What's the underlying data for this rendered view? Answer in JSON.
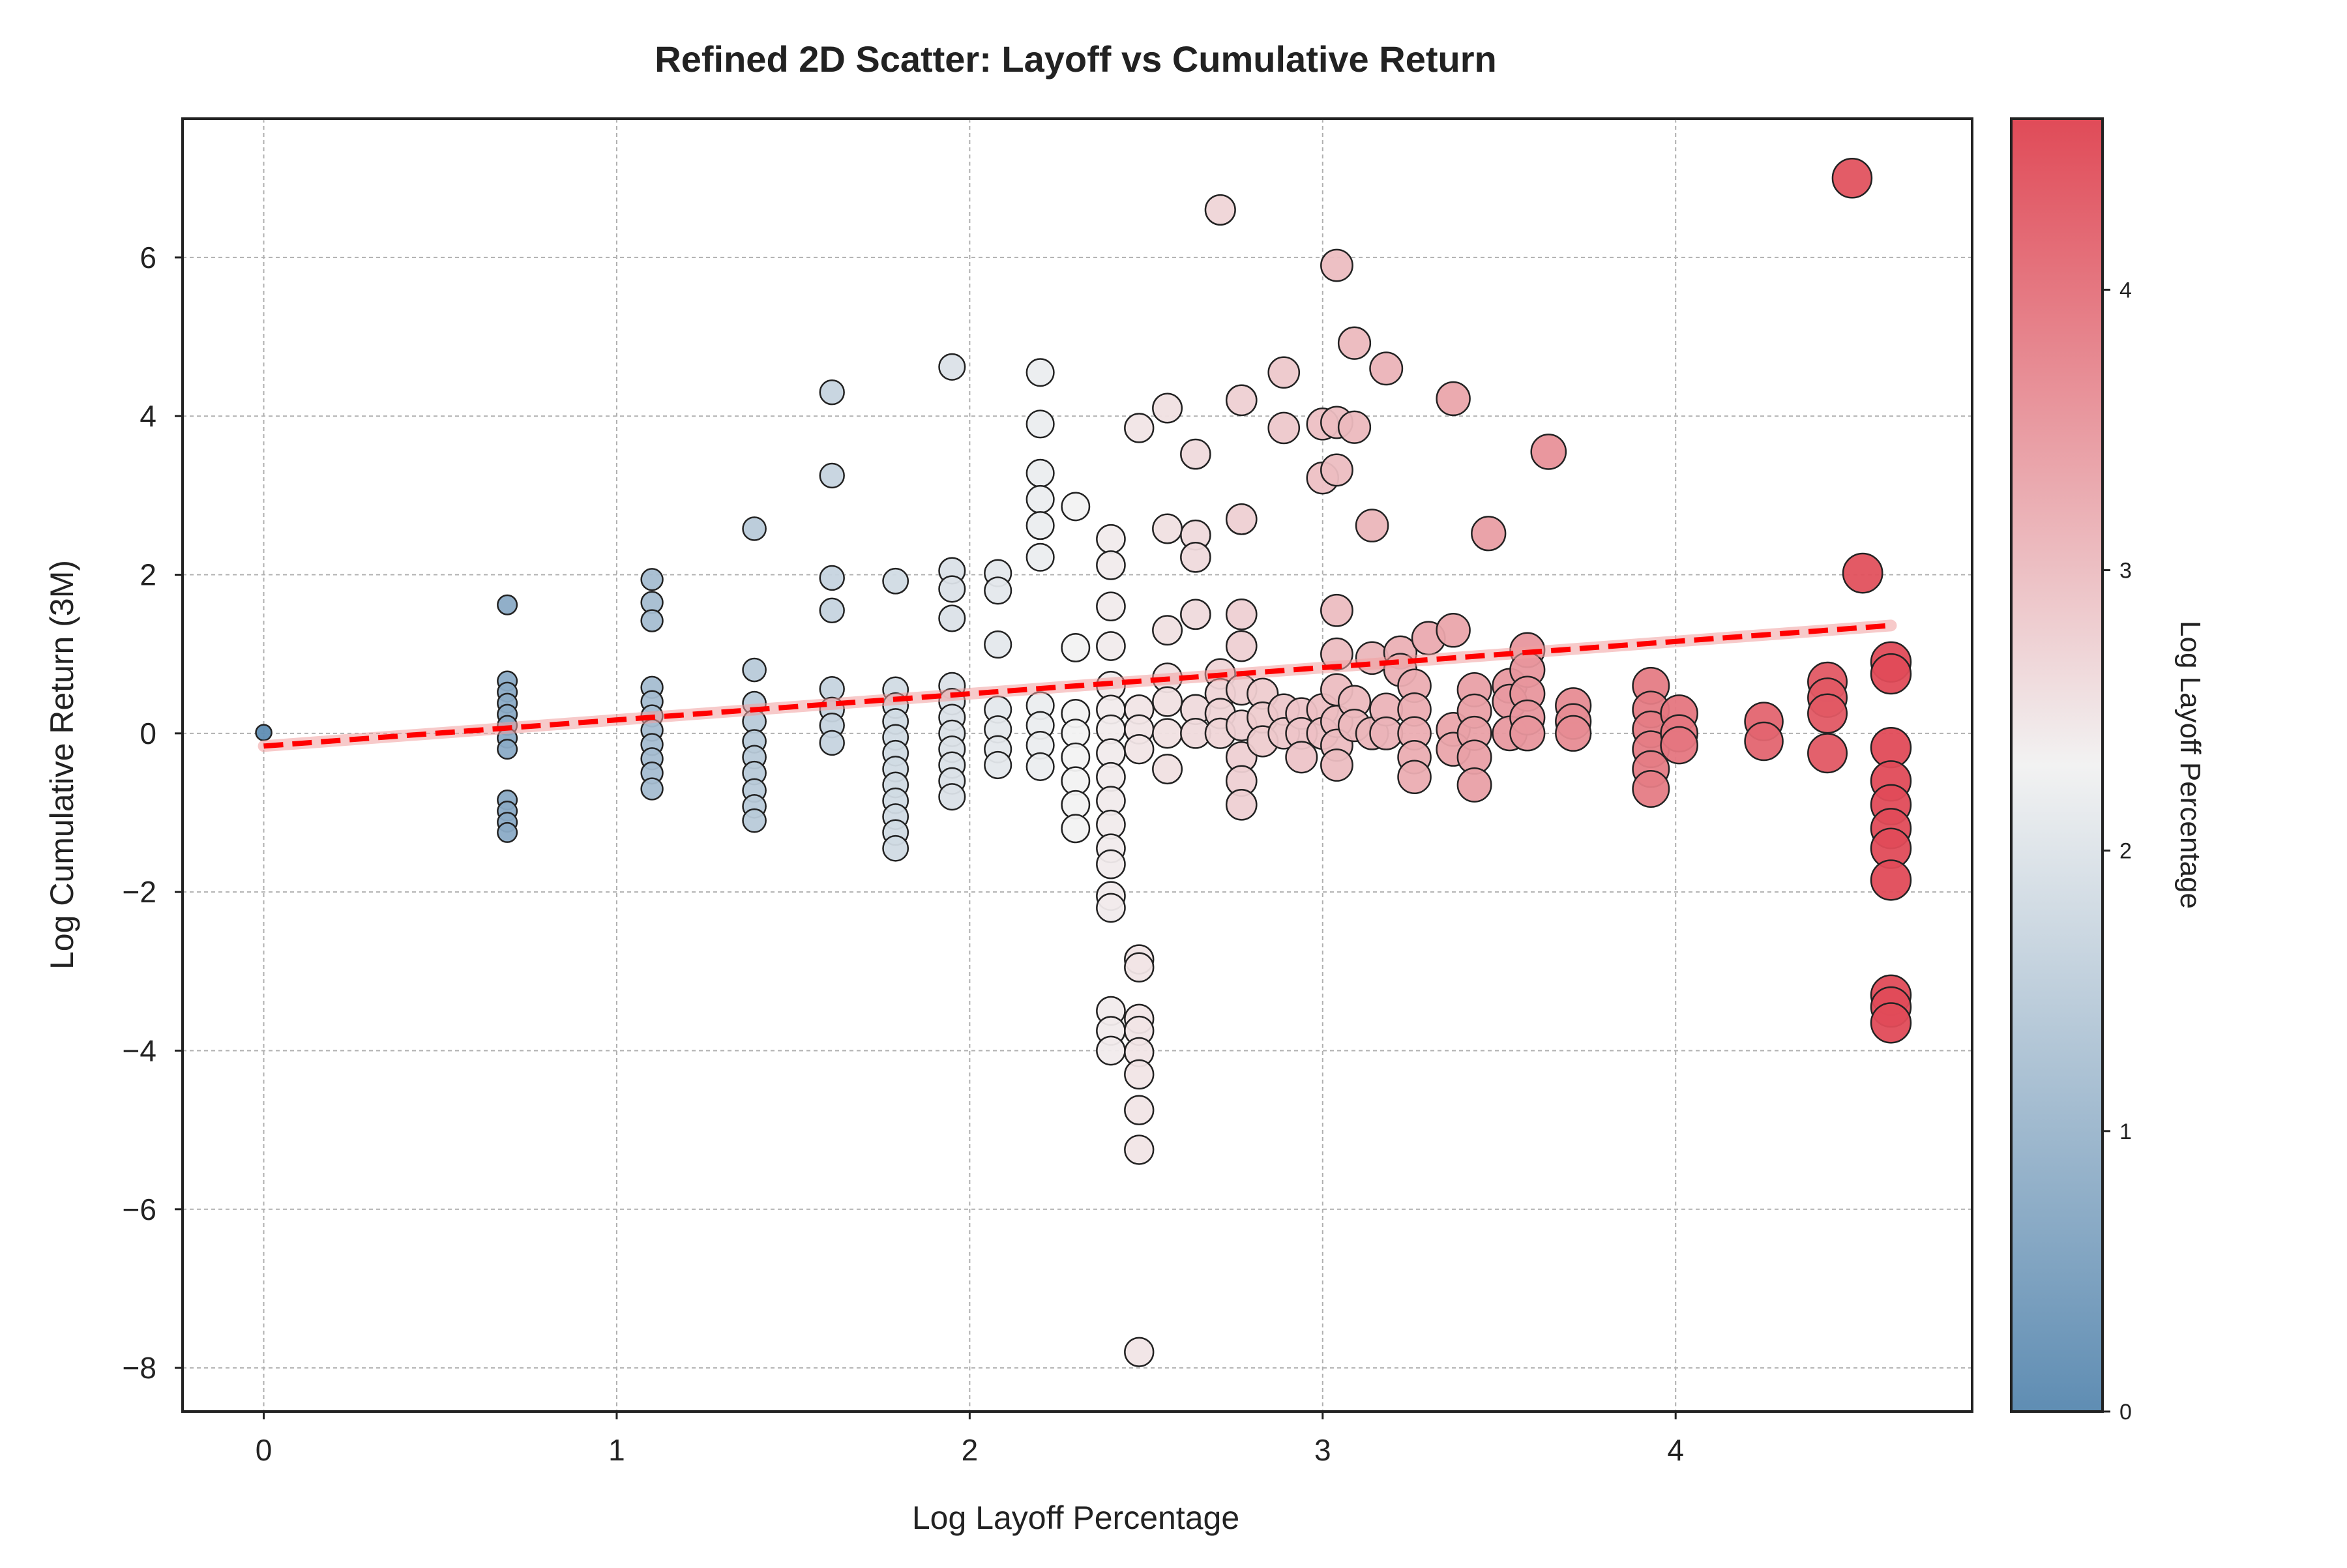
{
  "chart_data": {
    "type": "scatter",
    "title": "Refined 2D Scatter: Layoff vs Cumulative Return",
    "xlabel": "Log Layoff Percentage",
    "ylabel": "Log Cumulative Return (3M)",
    "xlim": [
      -0.23,
      4.84
    ],
    "ylim": [
      -8.55,
      7.75
    ],
    "xticks": [
      0,
      1,
      2,
      3,
      4
    ],
    "xtick_labels": [
      "0",
      "1",
      "2",
      "3",
      "4"
    ],
    "yticks": [
      -8,
      -6,
      -4,
      -2,
      0,
      2,
      4,
      6
    ],
    "ytick_labels": [
      "−8",
      "−6",
      "−4",
      "−2",
      "0",
      "2",
      "4",
      "6"
    ],
    "grid": true,
    "trendline": {
      "style": "dashed",
      "color": "#ff0000",
      "x": [
        0,
        4.61
      ],
      "y": [
        -0.16,
        1.36
      ]
    },
    "colorbar": {
      "label": "Log Layoff Percentage",
      "range": [
        0,
        4.61
      ],
      "ticks": [
        0,
        1,
        2,
        3,
        4
      ],
      "tick_labels": [
        "0",
        "1",
        "2",
        "3",
        "4"
      ],
      "colors": [
        "#5f8db3",
        "#f2f2f2",
        "#e04b58"
      ]
    },
    "points": [
      {
        "x": 0,
        "y": 0.01
      },
      {
        "x": 0.69,
        "y": 1.62
      },
      {
        "x": 0.69,
        "y": 0.66
      },
      {
        "x": 0.69,
        "y": 0.52
      },
      {
        "x": 0.69,
        "y": 0.38
      },
      {
        "x": 0.69,
        "y": 0.24
      },
      {
        "x": 0.69,
        "y": 0.1
      },
      {
        "x": 0.69,
        "y": -0.06
      },
      {
        "x": 0.69,
        "y": -0.2
      },
      {
        "x": 0.69,
        "y": -0.84
      },
      {
        "x": 0.69,
        "y": -0.98
      },
      {
        "x": 0.69,
        "y": -1.12
      },
      {
        "x": 0.69,
        "y": -1.25
      },
      {
        "x": 1.1,
        "y": 1.94
      },
      {
        "x": 1.1,
        "y": 1.65
      },
      {
        "x": 1.1,
        "y": 1.42
      },
      {
        "x": 1.1,
        "y": 0.58
      },
      {
        "x": 1.1,
        "y": 0.4
      },
      {
        "x": 1.1,
        "y": 0.22
      },
      {
        "x": 1.1,
        "y": 0.04
      },
      {
        "x": 1.1,
        "y": -0.14
      },
      {
        "x": 1.1,
        "y": -0.32
      },
      {
        "x": 1.1,
        "y": -0.5
      },
      {
        "x": 1.1,
        "y": -0.7
      },
      {
        "x": 1.39,
        "y": 2.58
      },
      {
        "x": 1.39,
        "y": 0.8
      },
      {
        "x": 1.39,
        "y": 0.38
      },
      {
        "x": 1.39,
        "y": 0.15
      },
      {
        "x": 1.39,
        "y": -0.1
      },
      {
        "x": 1.39,
        "y": -0.3
      },
      {
        "x": 1.39,
        "y": -0.5
      },
      {
        "x": 1.39,
        "y": -0.72
      },
      {
        "x": 1.39,
        "y": -0.92
      },
      {
        "x": 1.39,
        "y": -1.1
      },
      {
        "x": 1.61,
        "y": 4.3
      },
      {
        "x": 1.61,
        "y": 3.25
      },
      {
        "x": 1.61,
        "y": 1.96
      },
      {
        "x": 1.61,
        "y": 1.55
      },
      {
        "x": 1.61,
        "y": 0.56
      },
      {
        "x": 1.61,
        "y": 0.3
      },
      {
        "x": 1.61,
        "y": 0.1
      },
      {
        "x": 1.61,
        "y": -0.12
      },
      {
        "x": 1.79,
        "y": 1.92
      },
      {
        "x": 1.79,
        "y": 0.55
      },
      {
        "x": 1.79,
        "y": 0.35
      },
      {
        "x": 1.79,
        "y": 0.15
      },
      {
        "x": 1.79,
        "y": -0.05
      },
      {
        "x": 1.79,
        "y": -0.25
      },
      {
        "x": 1.79,
        "y": -0.45
      },
      {
        "x": 1.79,
        "y": -0.65
      },
      {
        "x": 1.79,
        "y": -0.85
      },
      {
        "x": 1.79,
        "y": -1.05
      },
      {
        "x": 1.79,
        "y": -1.25
      },
      {
        "x": 1.79,
        "y": -1.45
      },
      {
        "x": 1.95,
        "y": 4.62
      },
      {
        "x": 1.95,
        "y": 2.05
      },
      {
        "x": 1.95,
        "y": 1.82
      },
      {
        "x": 1.95,
        "y": 1.45
      },
      {
        "x": 1.95,
        "y": 0.6
      },
      {
        "x": 1.95,
        "y": 0.4
      },
      {
        "x": 1.95,
        "y": 0.2
      },
      {
        "x": 1.95,
        "y": 0
      },
      {
        "x": 1.95,
        "y": -0.2
      },
      {
        "x": 1.95,
        "y": -0.4
      },
      {
        "x": 1.95,
        "y": -0.6
      },
      {
        "x": 1.95,
        "y": -0.8
      },
      {
        "x": 2.08,
        "y": 2.02
      },
      {
        "x": 2.08,
        "y": 1.8
      },
      {
        "x": 2.08,
        "y": 1.12
      },
      {
        "x": 2.08,
        "y": 0.3
      },
      {
        "x": 2.08,
        "y": 0.05
      },
      {
        "x": 2.08,
        "y": -0.2
      },
      {
        "x": 2.08,
        "y": -0.4
      },
      {
        "x": 2.2,
        "y": 4.55
      },
      {
        "x": 2.2,
        "y": 3.9
      },
      {
        "x": 2.2,
        "y": 3.28
      },
      {
        "x": 2.2,
        "y": 2.95
      },
      {
        "x": 2.2,
        "y": 2.62
      },
      {
        "x": 2.2,
        "y": 2.22
      },
      {
        "x": 2.2,
        "y": 0.35
      },
      {
        "x": 2.2,
        "y": 0.1
      },
      {
        "x": 2.2,
        "y": -0.15
      },
      {
        "x": 2.2,
        "y": -0.42
      },
      {
        "x": 2.3,
        "y": 2.86
      },
      {
        "x": 2.3,
        "y": 1.08
      },
      {
        "x": 2.3,
        "y": 0.25
      },
      {
        "x": 2.3,
        "y": 0
      },
      {
        "x": 2.3,
        "y": -0.3
      },
      {
        "x": 2.3,
        "y": -0.6
      },
      {
        "x": 2.3,
        "y": -0.9
      },
      {
        "x": 2.3,
        "y": -1.2
      },
      {
        "x": 2.4,
        "y": 2.45
      },
      {
        "x": 2.4,
        "y": 2.12
      },
      {
        "x": 2.4,
        "y": 1.6
      },
      {
        "x": 2.4,
        "y": 1.1
      },
      {
        "x": 2.4,
        "y": 0.6
      },
      {
        "x": 2.4,
        "y": 0.3
      },
      {
        "x": 2.4,
        "y": 0.05
      },
      {
        "x": 2.4,
        "y": -0.25
      },
      {
        "x": 2.4,
        "y": -0.55
      },
      {
        "x": 2.4,
        "y": -0.85
      },
      {
        "x": 2.4,
        "y": -1.15
      },
      {
        "x": 2.4,
        "y": -1.45
      },
      {
        "x": 2.4,
        "y": -1.65
      },
      {
        "x": 2.4,
        "y": -2.05
      },
      {
        "x": 2.4,
        "y": -2.2
      },
      {
        "x": 2.4,
        "y": -3.5
      },
      {
        "x": 2.4,
        "y": -3.75
      },
      {
        "x": 2.4,
        "y": -4
      },
      {
        "x": 2.48,
        "y": 3.85
      },
      {
        "x": 2.48,
        "y": 0.3
      },
      {
        "x": 2.48,
        "y": 0.05
      },
      {
        "x": 2.48,
        "y": -0.2
      },
      {
        "x": 2.48,
        "y": -2.85
      },
      {
        "x": 2.48,
        "y": -2.95
      },
      {
        "x": 2.48,
        "y": -3.6
      },
      {
        "x": 2.48,
        "y": -3.75
      },
      {
        "x": 2.48,
        "y": -4.02
      },
      {
        "x": 2.48,
        "y": -4.3
      },
      {
        "x": 2.48,
        "y": -4.75
      },
      {
        "x": 2.48,
        "y": -5.25
      },
      {
        "x": 2.48,
        "y": -7.8
      },
      {
        "x": 2.56,
        "y": 4.1
      },
      {
        "x": 2.56,
        "y": 2.58
      },
      {
        "x": 2.56,
        "y": 1.3
      },
      {
        "x": 2.56,
        "y": 0.7
      },
      {
        "x": 2.56,
        "y": 0.4
      },
      {
        "x": 2.56,
        "y": 0
      },
      {
        "x": 2.56,
        "y": -0.45
      },
      {
        "x": 2.64,
        "y": 3.52
      },
      {
        "x": 2.64,
        "y": 2.5
      },
      {
        "x": 2.64,
        "y": 2.22
      },
      {
        "x": 2.64,
        "y": 1.5
      },
      {
        "x": 2.64,
        "y": 0.3
      },
      {
        "x": 2.64,
        "y": 0
      },
      {
        "x": 2.71,
        "y": 6.6
      },
      {
        "x": 2.71,
        "y": 0.75
      },
      {
        "x": 2.71,
        "y": 0.5
      },
      {
        "x": 2.71,
        "y": 0.25
      },
      {
        "x": 2.71,
        "y": 0
      },
      {
        "x": 2.77,
        "y": 4.2
      },
      {
        "x": 2.77,
        "y": 2.7
      },
      {
        "x": 2.77,
        "y": 1.5
      },
      {
        "x": 2.77,
        "y": 1.1
      },
      {
        "x": 2.77,
        "y": 0.55
      },
      {
        "x": 2.77,
        "y": 0.1
      },
      {
        "x": 2.77,
        "y": -0.3
      },
      {
        "x": 2.77,
        "y": -0.6
      },
      {
        "x": 2.77,
        "y": -0.9
      },
      {
        "x": 2.83,
        "y": 0.5
      },
      {
        "x": 2.83,
        "y": 0.2
      },
      {
        "x": 2.83,
        "y": -0.1
      },
      {
        "x": 2.89,
        "y": 4.55
      },
      {
        "x": 2.89,
        "y": 3.85
      },
      {
        "x": 2.89,
        "y": 0.3
      },
      {
        "x": 2.89,
        "y": 0
      },
      {
        "x": 2.94,
        "y": 0.25
      },
      {
        "x": 2.94,
        "y": 0
      },
      {
        "x": 2.94,
        "y": -0.3
      },
      {
        "x": 3,
        "y": 3.9
      },
      {
        "x": 3,
        "y": 3.22
      },
      {
        "x": 3,
        "y": 0.3
      },
      {
        "x": 3,
        "y": 0
      },
      {
        "x": 3.04,
        "y": 5.9
      },
      {
        "x": 3.04,
        "y": 3.92
      },
      {
        "x": 3.04,
        "y": 3.32
      },
      {
        "x": 3.04,
        "y": 1.55
      },
      {
        "x": 3.04,
        "y": 1
      },
      {
        "x": 3.04,
        "y": 0.55
      },
      {
        "x": 3.04,
        "y": 0.15
      },
      {
        "x": 3.04,
        "y": -0.15
      },
      {
        "x": 3.04,
        "y": -0.4
      },
      {
        "x": 3.09,
        "y": 4.92
      },
      {
        "x": 3.09,
        "y": 3.86
      },
      {
        "x": 3.09,
        "y": 0.4
      },
      {
        "x": 3.09,
        "y": 0.1
      },
      {
        "x": 3.14,
        "y": 2.62
      },
      {
        "x": 3.14,
        "y": 0.95
      },
      {
        "x": 3.14,
        "y": 0
      },
      {
        "x": 3.18,
        "y": 4.6
      },
      {
        "x": 3.18,
        "y": 0.3
      },
      {
        "x": 3.18,
        "y": 0
      },
      {
        "x": 3.22,
        "y": 1.02
      },
      {
        "x": 3.22,
        "y": 0.8
      },
      {
        "x": 3.26,
        "y": 0.6
      },
      {
        "x": 3.26,
        "y": 0.3
      },
      {
        "x": 3.26,
        "y": 0
      },
      {
        "x": 3.26,
        "y": -0.3
      },
      {
        "x": 3.26,
        "y": -0.55
      },
      {
        "x": 3.3,
        "y": 1.2
      },
      {
        "x": 3.37,
        "y": 4.22
      },
      {
        "x": 3.37,
        "y": 1.3
      },
      {
        "x": 3.37,
        "y": 0.05
      },
      {
        "x": 3.37,
        "y": -0.2
      },
      {
        "x": 3.43,
        "y": 0.55
      },
      {
        "x": 3.43,
        "y": 0.28
      },
      {
        "x": 3.43,
        "y": 0
      },
      {
        "x": 3.43,
        "y": -0.3
      },
      {
        "x": 3.43,
        "y": -0.65
      },
      {
        "x": 3.47,
        "y": 2.52
      },
      {
        "x": 3.53,
        "y": 0.6
      },
      {
        "x": 3.53,
        "y": 0.4
      },
      {
        "x": 3.53,
        "y": 0
      },
      {
        "x": 3.58,
        "y": 1.05
      },
      {
        "x": 3.58,
        "y": 0.8
      },
      {
        "x": 3.58,
        "y": 0.5
      },
      {
        "x": 3.58,
        "y": 0.2
      },
      {
        "x": 3.58,
        "y": 0
      },
      {
        "x": 3.64,
        "y": 3.55
      },
      {
        "x": 3.71,
        "y": 0.35
      },
      {
        "x": 3.71,
        "y": 0.15
      },
      {
        "x": 3.71,
        "y": 0
      },
      {
        "x": 3.93,
        "y": 0.6
      },
      {
        "x": 3.93,
        "y": 0.3
      },
      {
        "x": 3.93,
        "y": 0.05
      },
      {
        "x": 3.93,
        "y": -0.2
      },
      {
        "x": 3.93,
        "y": -0.45
      },
      {
        "x": 3.93,
        "y": -0.7
      },
      {
        "x": 4.01,
        "y": 0.25
      },
      {
        "x": 4.01,
        "y": 0
      },
      {
        "x": 4.01,
        "y": -0.15
      },
      {
        "x": 4.25,
        "y": 0.15
      },
      {
        "x": 4.25,
        "y": -0.1
      },
      {
        "x": 4.43,
        "y": 0.65
      },
      {
        "x": 4.43,
        "y": 0.45
      },
      {
        "x": 4.43,
        "y": 0.25
      },
      {
        "x": 4.43,
        "y": -0.25
      },
      {
        "x": 4.5,
        "y": 7.0
      },
      {
        "x": 4.53,
        "y": 2.02
      },
      {
        "x": 4.61,
        "y": 0.9
      },
      {
        "x": 4.61,
        "y": 0.75
      },
      {
        "x": 4.61,
        "y": -0.18
      },
      {
        "x": 4.61,
        "y": -0.6
      },
      {
        "x": 4.61,
        "y": -0.9
      },
      {
        "x": 4.61,
        "y": -1.2
      },
      {
        "x": 4.61,
        "y": -1.45
      },
      {
        "x": 4.61,
        "y": -1.85
      },
      {
        "x": 4.61,
        "y": -3.3
      },
      {
        "x": 4.61,
        "y": -3.45
      },
      {
        "x": 4.61,
        "y": -3.65
      }
    ]
  }
}
